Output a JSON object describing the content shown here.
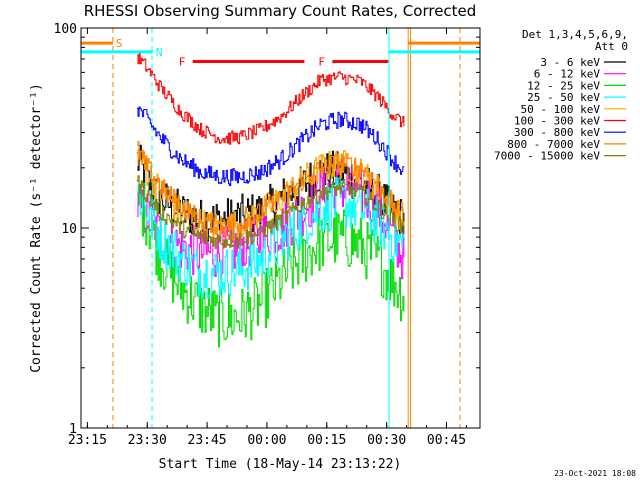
{
  "chart_data": {
    "type": "line",
    "title": "RHESSI Observing Summary Count Rates, Corrected",
    "xlabel": "Start Time (18-May-14 23:13:22)",
    "ylabel": "Corrected Count Rate (s⁻¹ detector⁻¹)",
    "yscale": "log",
    "ylim": [
      1,
      100
    ],
    "ytick_labels": [
      "1",
      "10",
      "100"
    ],
    "xlim_minutes": [
      0,
      100
    ],
    "xtick_labels": [
      "23:15",
      "23:30",
      "23:45",
      "00:00",
      "00:15",
      "00:30",
      "00:45"
    ],
    "xtick_minutes": [
      1.6,
      16.6,
      31.6,
      46.6,
      61.6,
      76.6,
      91.6
    ],
    "timestamp": "23-Oct-2021 18:08",
    "legend": {
      "placement": "right",
      "header": [
        "Det 1,3,4,5,6,9,",
        "Att 0"
      ],
      "entries": [
        {
          "label": "3 - 6 keV",
          "color": "#000000"
        },
        {
          "label": "6 - 12 keV",
          "color": "#ff00ff"
        },
        {
          "label": "12 - 25 keV",
          "color": "#00dd00"
        },
        {
          "label": "25 - 50 keV",
          "color": "#00ffff"
        },
        {
          "label": "50 - 100 keV",
          "color": "#ffa500"
        },
        {
          "label": "100 - 300 keV",
          "color": "#ff0000"
        },
        {
          "label": "300 - 800 keV",
          "color": "#0000ff"
        },
        {
          "label": "800 - 7000 keV",
          "color": "#ff7f00"
        },
        {
          "label": "7000 - 15000 keV",
          "color": "#808000"
        }
      ]
    },
    "flags": [
      {
        "label": "S",
        "color": "#ff7f00",
        "start": 0,
        "end": 8,
        "level": 84
      },
      {
        "label": "N",
        "color": "#00ffff",
        "start": 0,
        "end": 18,
        "level": 76
      },
      {
        "label": "F",
        "color": "#ff0000",
        "start": 28,
        "end": 56,
        "level": 68
      },
      {
        "label": "F",
        "color": "#ff0000",
        "start": 63,
        "end": 77,
        "level": 68
      },
      {
        "label": "",
        "color": "#ff7f00",
        "start": 82,
        "end": 100,
        "level": 84
      },
      {
        "label": "",
        "color": "#00ffff",
        "start": 77,
        "end": 100,
        "level": 76
      }
    ],
    "vlines": [
      {
        "t": 8,
        "color": "#ff7f00",
        "dash": true
      },
      {
        "t": 17.8,
        "color": "#00ffff",
        "dash": true
      },
      {
        "t": 77.2,
        "color": "#00ffff",
        "dash": false
      },
      {
        "t": 82,
        "color": "#ff7f00",
        "dash": false
      },
      {
        "t": 82.6,
        "color": "#ff7f00",
        "dash": false
      },
      {
        "t": 95,
        "color": "#ff7f00",
        "dash": true
      }
    ],
    "series": [
      {
        "name": "3 - 6 keV",
        "color": "#000000",
        "noise": 0.25,
        "x": [
          14,
          16,
          20,
          25,
          30,
          35,
          40,
          45,
          50,
          55,
          60,
          65,
          70,
          74,
          78,
          81
        ],
        "y": [
          22,
          18,
          14,
          12,
          11,
          11,
          11.5,
          12,
          14,
          16,
          19,
          19,
          17,
          15,
          12,
          11
        ]
      },
      {
        "name": "6 - 12 keV",
        "color": "#ff00ff",
        "noise": 0.3,
        "x": [
          14,
          16,
          20,
          25,
          30,
          35,
          40,
          45,
          50,
          55,
          60,
          65,
          70,
          74,
          78,
          81
        ],
        "y": [
          13,
          12,
          9,
          8,
          7.5,
          7.5,
          8,
          9,
          10,
          12,
          15,
          16,
          15,
          13,
          9,
          7
        ]
      },
      {
        "name": "12 - 25 keV",
        "color": "#00dd00",
        "noise": 0.35,
        "x": [
          14,
          16,
          20,
          25,
          30,
          35,
          40,
          45,
          50,
          55,
          60,
          65,
          70,
          74,
          78,
          81
        ],
        "y": [
          14,
          12,
          7,
          5,
          4,
          3.5,
          3.6,
          4.2,
          5.5,
          7,
          8.5,
          9,
          8.2,
          7,
          5.5,
          4.5
        ]
      },
      {
        "name": "25 - 50 keV",
        "color": "#00ffff",
        "noise": 0.3,
        "x": [
          14,
          16,
          20,
          25,
          30,
          35,
          40,
          45,
          50,
          55,
          60,
          65,
          70,
          74,
          78,
          81
        ],
        "y": [
          15,
          13,
          9,
          7,
          6,
          6,
          6.2,
          7,
          8.5,
          10.5,
          12.5,
          13.5,
          12.5,
          11,
          9,
          8
        ]
      },
      {
        "name": "50 - 100 keV",
        "color": "#ffa500",
        "noise": 0.18,
        "x": [
          14,
          16,
          20,
          25,
          30,
          35,
          40,
          45,
          50,
          55,
          60,
          65,
          70,
          74,
          78,
          81
        ],
        "y": [
          24,
          20,
          15,
          12,
          10.5,
          10,
          10.5,
          12,
          14,
          17,
          20,
          21,
          19,
          16,
          13,
          11
        ]
      },
      {
        "name": "100 - 300 keV",
        "color": "#ff0000",
        "noise": 0.08,
        "x": [
          14,
          16,
          20,
          25,
          30,
          35,
          40,
          45,
          50,
          55,
          60,
          65,
          70,
          74,
          78,
          81
        ],
        "y": [
          72,
          65,
          50,
          38,
          31,
          28,
          28.5,
          31,
          36,
          45,
          55,
          57,
          54,
          46,
          37,
          33
        ]
      },
      {
        "name": "300 - 800 keV",
        "color": "#0000ff",
        "noise": 0.1,
        "x": [
          14,
          16,
          20,
          25,
          30,
          35,
          40,
          45,
          50,
          55,
          60,
          65,
          70,
          74,
          78,
          81
        ],
        "y": [
          40,
          36,
          28,
          22,
          19,
          18,
          18,
          19,
          22,
          27,
          33,
          35,
          33,
          28,
          22,
          19
        ]
      },
      {
        "name": "800 - 7000 keV",
        "color": "#ff7f00",
        "noise": 0.12,
        "x": [
          14,
          16,
          20,
          25,
          30,
          35,
          40,
          45,
          50,
          55,
          60,
          65,
          70,
          74,
          78,
          81
        ],
        "y": [
          25,
          21,
          16,
          13,
          11,
          10.2,
          10.5,
          12,
          14,
          17,
          20,
          21.5,
          20,
          17,
          13,
          11
        ]
      },
      {
        "name": "7000 - 15000 keV",
        "color": "#808000",
        "noise": 0.1,
        "x": [
          14,
          16,
          20,
          25,
          30,
          35,
          40,
          45,
          50,
          55,
          60,
          65,
          70,
          74,
          78,
          81
        ],
        "y": [
          17,
          15,
          12,
          10,
          9,
          8.6,
          8.8,
          9.5,
          11,
          13,
          15,
          16,
          15,
          13,
          11,
          10
        ]
      }
    ]
  }
}
